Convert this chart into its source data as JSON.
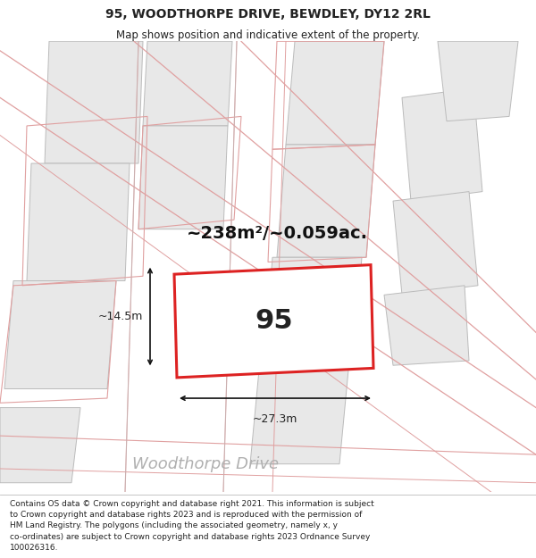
{
  "title_line1": "95, WOODTHORPE DRIVE, BEWDLEY, DY12 2RL",
  "title_line2": "Map shows position and indicative extent of the property.",
  "area_text": "~238m²/~0.059ac.",
  "property_number": "95",
  "dim_width": "~27.3m",
  "dim_height": "~14.5m",
  "road_label": "Woodthorpe Drive",
  "footer_lines": [
    "Contains OS data © Crown copyright and database right 2021. This information is subject",
    "to Crown copyright and database rights 2023 and is reproduced with the permission of",
    "HM Land Registry. The polygons (including the associated geometry, namely x, y",
    "co-ordinates) are subject to Crown copyright and database rights 2023 Ordnance Survey",
    "100026316."
  ],
  "bg_color": "#ffffff",
  "map_bg_color": "#ffffff",
  "plot_fill": "#ffffff",
  "plot_edge_color": "#dd2222",
  "building_fill": "#e8e8e8",
  "building_edge_light": "#e0b0b0",
  "building_edge_gray": "#bbbbbb",
  "road_line_color": "#e0a0a0",
  "dim_line_color": "#111111",
  "text_color": "#222222",
  "road_text_color": "#b0b0b0",
  "area_text_color": "#111111",
  "title_fontsize": 10,
  "subtitle_fontsize": 8.5,
  "area_fontsize": 14,
  "prop_num_fontsize": 22,
  "dim_fontsize": 9,
  "road_fontsize": 13,
  "footer_fontsize": 6.5
}
